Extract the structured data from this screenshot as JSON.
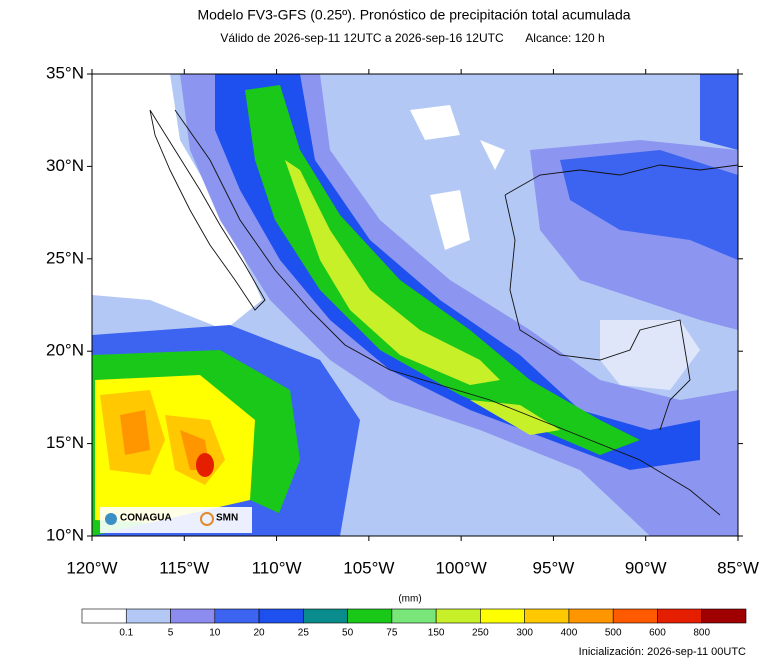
{
  "header": {
    "title": "Modelo FV3-GFS (0.25º). Pronóstico de precipitación total acumulada",
    "valid": "Válido de 2026-sep-11 12UTC a 2026-sep-16 12UTC",
    "range": "Alcance: 120 h"
  },
  "map": {
    "lat_labels": [
      "35°N",
      "30°N",
      "25°N",
      "20°N",
      "15°N",
      "10°N"
    ],
    "lon_labels": [
      "120°W",
      "115°W",
      "110°W",
      "105°W",
      "100°W",
      "95°W",
      "90°W",
      "85°W"
    ],
    "logos": [
      "CONAGUA",
      "SMN"
    ]
  },
  "colorbar": {
    "unit": "(mm)",
    "labels": [
      "0.1",
      "5",
      "10",
      "20",
      "25",
      "50",
      "75",
      "150",
      "250",
      "300",
      "400",
      "500",
      "600",
      "800"
    ],
    "colors": [
      "#ffffff",
      "#b4c8f5",
      "#8c8cf0",
      "#3c64f0",
      "#1e50f0",
      "#0a8c8c",
      "#19c819",
      "#78e678",
      "#c8f028",
      "#ffff00",
      "#ffc800",
      "#ff9600",
      "#ff5a00",
      "#e61e00",
      "#a00000"
    ]
  },
  "footer": {
    "init": "Inicialización: 2026-sep-11 00UTC"
  }
}
